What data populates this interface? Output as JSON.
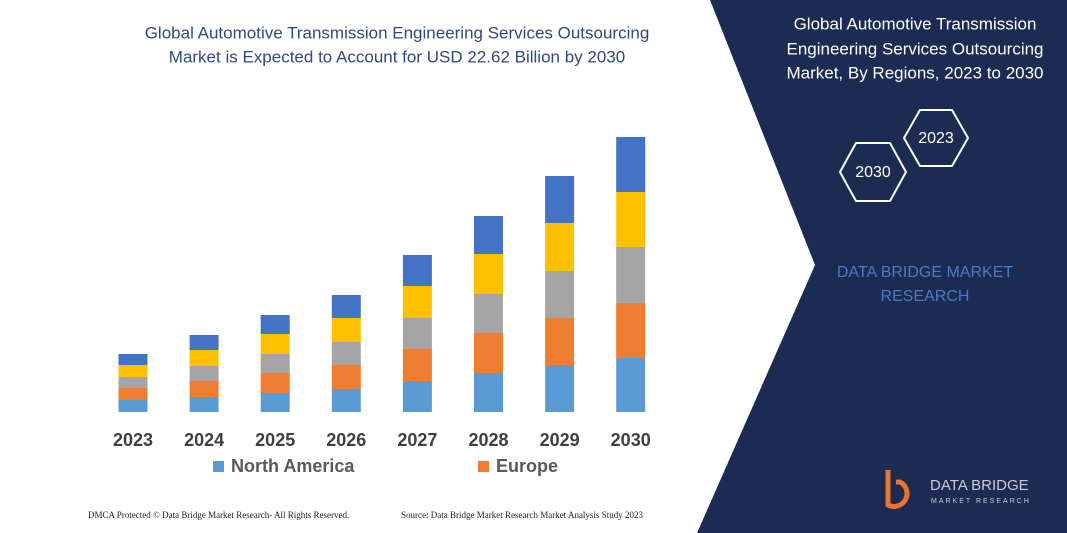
{
  "chart_data": {
    "type": "stacked_bar",
    "title": [
      "Global Automotive Transmission Engineering Services Outsourcing",
      "Market is Expected to Account for USD 22.62 Billion by 2030"
    ],
    "categories": [
      "2023",
      "2024",
      "2025",
      "2026",
      "2027",
      "2028",
      "2029",
      "2030"
    ],
    "series": [
      {
        "name": "North America",
        "color": "#5b9bd5",
        "values": [
          12,
          15,
          19,
          23,
          31,
          39,
          47,
          54
        ]
      },
      {
        "name": "Europe",
        "color": "#ed7d31",
        "values": [
          12,
          16,
          20,
          24,
          32,
          40,
          47,
          55
        ]
      },
      {
        "color": "#a5a5a5",
        "values": [
          11,
          15,
          19,
          23,
          31,
          39,
          47,
          56
        ]
      },
      {
        "color": "#ffc000",
        "values": [
          12,
          16,
          20,
          24,
          32,
          40,
          48,
          55
        ]
      },
      {
        "color": "#4472c4",
        "values": [
          11,
          15,
          19,
          23,
          31,
          38,
          47,
          55
        ]
      }
    ]
  },
  "panel": {
    "title": [
      "Global Automotive Transmission",
      "Engineering Services Outsourcing",
      "Market, By Regions, 2023 to 2030"
    ],
    "hexagons": [
      "2023",
      "2030"
    ],
    "brand": [
      "DATA BRIDGE MARKET",
      "RESEARCH"
    ]
  },
  "logo": {
    "name": "DATA BRIDGE",
    "tagline": "MARKET RESEARCH"
  },
  "footer": {
    "left": "DMCA Protected © Data Bridge Market Research-  All Rights Reserved.",
    "right": "Source: Data Bridge Market Research  Market Analysis Study 2023"
  }
}
